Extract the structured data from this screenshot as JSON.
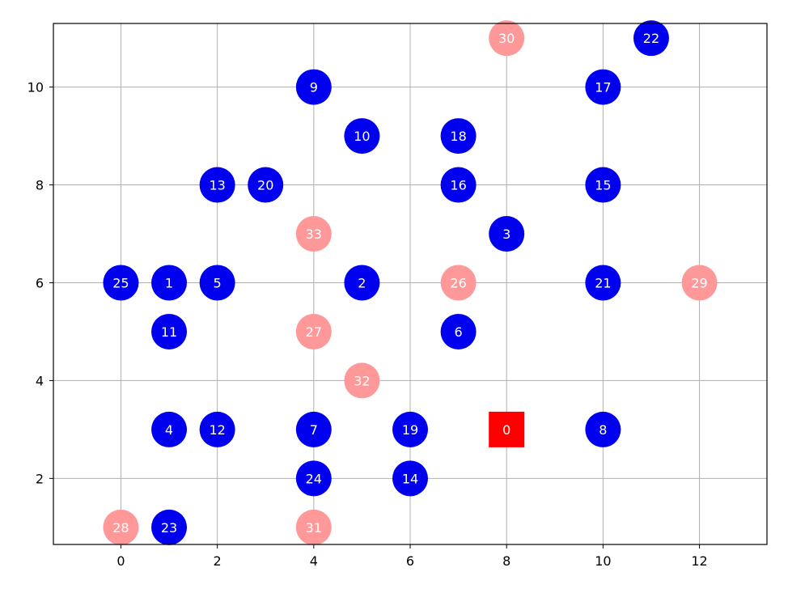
{
  "chart_data": {
    "type": "scatter",
    "title": "",
    "xlabel": "",
    "ylabel": "",
    "xlim": [
      -1.4,
      13.4
    ],
    "ylim": [
      0.65,
      11.3
    ],
    "xticks": [
      0,
      2,
      4,
      6,
      8,
      10,
      12
    ],
    "yticks": [
      2,
      4,
      6,
      8,
      10
    ],
    "grid": true,
    "legend": "none",
    "colors": {
      "primary": "#0000ee",
      "secondary": "#ff9999",
      "depot": "#ff0000"
    },
    "depot": {
      "label": "0",
      "x": 8,
      "y": 3,
      "marker": "square"
    },
    "series": [
      {
        "name": "blue",
        "color": "#0000ee",
        "points": [
          {
            "label": "1",
            "x": 1,
            "y": 6
          },
          {
            "label": "2",
            "x": 5,
            "y": 6
          },
          {
            "label": "3",
            "x": 8,
            "y": 7
          },
          {
            "label": "4",
            "x": 1,
            "y": 3
          },
          {
            "label": "5",
            "x": 2,
            "y": 6
          },
          {
            "label": "6",
            "x": 7,
            "y": 5
          },
          {
            "label": "7",
            "x": 4,
            "y": 3
          },
          {
            "label": "8",
            "x": 10,
            "y": 3
          },
          {
            "label": "9",
            "x": 4,
            "y": 10
          },
          {
            "label": "10",
            "x": 5,
            "y": 9
          },
          {
            "label": "11",
            "x": 1,
            "y": 5
          },
          {
            "label": "12",
            "x": 2,
            "y": 3
          },
          {
            "label": "13",
            "x": 2,
            "y": 8
          },
          {
            "label": "14",
            "x": 6,
            "y": 2
          },
          {
            "label": "15",
            "x": 10,
            "y": 8
          },
          {
            "label": "16",
            "x": 7,
            "y": 8
          },
          {
            "label": "17",
            "x": 10,
            "y": 10
          },
          {
            "label": "18",
            "x": 7,
            "y": 9
          },
          {
            "label": "19",
            "x": 6,
            "y": 3
          },
          {
            "label": "20",
            "x": 3,
            "y": 8
          },
          {
            "label": "21",
            "x": 10,
            "y": 6
          },
          {
            "label": "22",
            "x": 11,
            "y": 11
          },
          {
            "label": "23",
            "x": 1,
            "y": 1
          },
          {
            "label": "24",
            "x": 4,
            "y": 2
          },
          {
            "label": "25",
            "x": 0,
            "y": 6
          }
        ]
      },
      {
        "name": "pink",
        "color": "#ff9999",
        "points": [
          {
            "label": "26",
            "x": 7,
            "y": 6
          },
          {
            "label": "27",
            "x": 4,
            "y": 5
          },
          {
            "label": "28",
            "x": 0,
            "y": 1
          },
          {
            "label": "29",
            "x": 12,
            "y": 6
          },
          {
            "label": "30",
            "x": 8,
            "y": 11
          },
          {
            "label": "31",
            "x": 4,
            "y": 1
          },
          {
            "label": "32",
            "x": 5,
            "y": 4
          },
          {
            "label": "33",
            "x": 4,
            "y": 7
          }
        ]
      }
    ]
  }
}
